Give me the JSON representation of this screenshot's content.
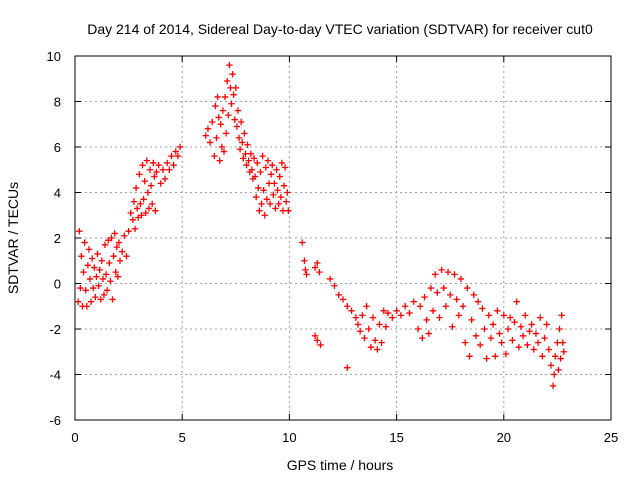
{
  "chart_data": {
    "type": "scatter",
    "title": "Day 214 of 2014, Sidereal Day-to-day VTEC variation (SDTVAR) for receiver cut0",
    "xlabel": "GPS time / hours",
    "ylabel": "SDTVAR / TECUs",
    "xlim": [
      0,
      25
    ],
    "ylim": [
      -6,
      10
    ],
    "xticks": [
      "0",
      "5",
      "10",
      "15",
      "20",
      "25"
    ],
    "yticks": [
      "-6",
      "-4",
      "-2",
      "0",
      "2",
      "4",
      "6",
      "8",
      "10"
    ],
    "grid": true,
    "marker": "+",
    "marker_color": "#ff0000",
    "series": [
      {
        "name": "cut0",
        "points": [
          [
            0.15,
            -0.8
          ],
          [
            0.2,
            2.3
          ],
          [
            0.25,
            -0.2
          ],
          [
            0.3,
            1.2
          ],
          [
            0.35,
            -1.0
          ],
          [
            0.4,
            0.5
          ],
          [
            0.45,
            1.8
          ],
          [
            0.5,
            -0.3
          ],
          [
            0.55,
            -1.0
          ],
          [
            0.6,
            0.8
          ],
          [
            0.65,
            1.5
          ],
          [
            0.7,
            0.2
          ],
          [
            0.75,
            -0.8
          ],
          [
            0.8,
            1.1
          ],
          [
            0.85,
            -0.2
          ],
          [
            0.9,
            0.7
          ],
          [
            0.95,
            -0.6
          ],
          [
            1.0,
            0.3
          ],
          [
            1.05,
            1.3
          ],
          [
            1.1,
            -0.1
          ],
          [
            1.15,
            0.6
          ],
          [
            1.2,
            -0.7
          ],
          [
            1.25,
            1.0
          ],
          [
            1.3,
            0.2
          ],
          [
            1.35,
            -0.5
          ],
          [
            1.4,
            1.7
          ],
          [
            1.45,
            0.4
          ],
          [
            1.5,
            -0.3
          ],
          [
            1.55,
            1.9
          ],
          [
            1.6,
            0.9
          ],
          [
            1.65,
            0.1
          ],
          [
            1.7,
            2.0
          ],
          [
            1.75,
            -0.7
          ],
          [
            1.8,
            1.2
          ],
          [
            1.85,
            2.2
          ],
          [
            1.9,
            0.5
          ],
          [
            1.95,
            1.6
          ],
          [
            2.0,
            0.3
          ],
          [
            2.05,
            1.8
          ],
          [
            2.1,
            1.0
          ],
          [
            2.2,
            1.4
          ],
          [
            2.3,
            2.1
          ],
          [
            2.4,
            1.2
          ],
          [
            2.5,
            2.3
          ],
          [
            2.6,
            3.1
          ],
          [
            2.7,
            2.8
          ],
          [
            2.75,
            3.6
          ],
          [
            2.8,
            2.4
          ],
          [
            2.85,
            4.2
          ],
          [
            2.9,
            3.3
          ],
          [
            2.95,
            2.9
          ],
          [
            3.0,
            4.8
          ],
          [
            3.05,
            3.5
          ],
          [
            3.1,
            3.0
          ],
          [
            3.15,
            5.2
          ],
          [
            3.2,
            3.7
          ],
          [
            3.25,
            4.5
          ],
          [
            3.3,
            3.1
          ],
          [
            3.35,
            5.4
          ],
          [
            3.4,
            4.0
          ],
          [
            3.45,
            3.3
          ],
          [
            3.5,
            5.0
          ],
          [
            3.55,
            4.3
          ],
          [
            3.6,
            3.5
          ],
          [
            3.65,
            5.3
          ],
          [
            3.7,
            4.7
          ],
          [
            3.75,
            3.2
          ],
          [
            3.8,
            4.9
          ],
          [
            3.9,
            5.2
          ],
          [
            4.0,
            4.4
          ],
          [
            4.1,
            5.0
          ],
          [
            4.2,
            4.6
          ],
          [
            4.3,
            5.3
          ],
          [
            4.4,
            5.0
          ],
          [
            4.5,
            5.6
          ],
          [
            4.6,
            5.2
          ],
          [
            4.7,
            5.8
          ],
          [
            4.8,
            5.6
          ],
          [
            4.9,
            6.0
          ],
          [
            6.1,
            6.5
          ],
          [
            6.2,
            6.8
          ],
          [
            6.3,
            6.2
          ],
          [
            6.4,
            7.1
          ],
          [
            6.5,
            5.6
          ],
          [
            6.55,
            7.8
          ],
          [
            6.6,
            6.4
          ],
          [
            6.65,
            8.2
          ],
          [
            6.7,
            7.3
          ],
          [
            6.75,
            5.4
          ],
          [
            6.8,
            7.0
          ],
          [
            6.85,
            6.0
          ],
          [
            6.9,
            7.6
          ],
          [
            6.95,
            5.8
          ],
          [
            7.0,
            8.2
          ],
          [
            7.05,
            6.6
          ],
          [
            7.1,
            8.9
          ],
          [
            7.15,
            7.4
          ],
          [
            7.2,
            9.6
          ],
          [
            7.25,
            8.6
          ],
          [
            7.3,
            7.9
          ],
          [
            7.35,
            9.2
          ],
          [
            7.4,
            8.3
          ],
          [
            7.45,
            7.2
          ],
          [
            7.5,
            8.6
          ],
          [
            7.55,
            6.9
          ],
          [
            7.6,
            7.6
          ],
          [
            7.65,
            6.4
          ],
          [
            7.7,
            5.9
          ],
          [
            7.75,
            7.1
          ],
          [
            7.8,
            6.2
          ],
          [
            7.85,
            5.5
          ],
          [
            7.9,
            6.6
          ],
          [
            7.95,
            5.7
          ],
          [
            8.0,
            5.2
          ],
          [
            8.05,
            6.1
          ],
          [
            8.1,
            5.4
          ],
          [
            8.15,
            4.9
          ],
          [
            8.2,
            5.7
          ],
          [
            8.25,
            5.0
          ],
          [
            8.3,
            4.6
          ],
          [
            8.35,
            5.5
          ],
          [
            8.4,
            4.7
          ],
          [
            8.45,
            3.8
          ],
          [
            8.5,
            5.3
          ],
          [
            8.55,
            4.2
          ],
          [
            8.6,
            3.2
          ],
          [
            8.65,
            4.9
          ],
          [
            8.7,
            3.5
          ],
          [
            8.75,
            5.6
          ],
          [
            8.8,
            4.1
          ],
          [
            8.85,
            3.0
          ],
          [
            8.9,
            5.1
          ],
          [
            8.95,
            3.7
          ],
          [
            9.0,
            5.4
          ],
          [
            9.05,
            4.4
          ],
          [
            9.1,
            3.5
          ],
          [
            9.15,
            4.8
          ],
          [
            9.2,
            5.2
          ],
          [
            9.25,
            3.9
          ],
          [
            9.3,
            4.4
          ],
          [
            9.35,
            3.3
          ],
          [
            9.4,
            5.0
          ],
          [
            9.45,
            4.1
          ],
          [
            9.5,
            3.5
          ],
          [
            9.55,
            4.7
          ],
          [
            9.6,
            3.8
          ],
          [
            9.65,
            5.3
          ],
          [
            9.7,
            3.2
          ],
          [
            9.75,
            4.3
          ],
          [
            9.8,
            5.1
          ],
          [
            9.85,
            3.6
          ],
          [
            9.9,
            4.0
          ],
          [
            9.95,
            3.2
          ],
          [
            10.6,
            1.8
          ],
          [
            10.7,
            1.0
          ],
          [
            10.75,
            0.6
          ],
          [
            10.8,
            0.4
          ],
          [
            11.2,
            0.7
          ],
          [
            11.3,
            0.9
          ],
          [
            11.4,
            0.5
          ],
          [
            11.2,
            -2.3
          ],
          [
            11.3,
            -2.5
          ],
          [
            11.45,
            -2.7
          ],
          [
            11.9,
            0.2
          ],
          [
            12.1,
            -0.1
          ],
          [
            12.3,
            -0.5
          ],
          [
            12.5,
            -0.7
          ],
          [
            12.7,
            -1.0
          ],
          [
            12.9,
            -1.2
          ],
          [
            13.1,
            -1.5
          ],
          [
            13.2,
            -1.8
          ],
          [
            13.3,
            -2.1
          ],
          [
            13.4,
            -1.4
          ],
          [
            13.5,
            -2.4
          ],
          [
            13.6,
            -1.0
          ],
          [
            13.7,
            -2.0
          ],
          [
            13.8,
            -2.8
          ],
          [
            13.9,
            -1.5
          ],
          [
            14.0,
            -2.5
          ],
          [
            14.1,
            -2.9
          ],
          [
            14.2,
            -1.8
          ],
          [
            14.3,
            -2.6
          ],
          [
            14.4,
            -1.2
          ],
          [
            14.5,
            -1.9
          ],
          [
            14.6,
            -1.3
          ],
          [
            14.8,
            -1.5
          ],
          [
            15.0,
            -1.2
          ],
          [
            15.2,
            -1.4
          ],
          [
            15.4,
            -1.0
          ],
          [
            15.6,
            -1.3
          ],
          [
            15.8,
            -0.8
          ],
          [
            16.0,
            -2.0
          ],
          [
            16.1,
            -1.0
          ],
          [
            16.2,
            -2.4
          ],
          [
            16.3,
            -0.6
          ],
          [
            16.4,
            -1.6
          ],
          [
            16.5,
            -2.2
          ],
          [
            16.6,
            -0.2
          ],
          [
            16.7,
            -1.2
          ],
          [
            16.8,
            0.4
          ],
          [
            16.9,
            -0.4
          ],
          [
            17.0,
            -1.5
          ],
          [
            17.1,
            0.6
          ],
          [
            17.2,
            -0.2
          ],
          [
            17.3,
            -1.0
          ],
          [
            17.4,
            0.5
          ],
          [
            17.5,
            -0.5
          ],
          [
            17.6,
            -1.9
          ],
          [
            17.7,
            0.4
          ],
          [
            17.8,
            -0.7
          ],
          [
            17.9,
            -1.4
          ],
          [
            18.0,
            0.2
          ],
          [
            18.1,
            -1.0
          ],
          [
            18.2,
            -2.6
          ],
          [
            18.3,
            -0.2
          ],
          [
            18.4,
            -3.2
          ],
          [
            18.5,
            -1.6
          ],
          [
            18.6,
            -0.5
          ],
          [
            18.7,
            -2.3
          ],
          [
            18.8,
            -0.8
          ],
          [
            18.9,
            -2.7
          ],
          [
            19.0,
            -1.1
          ],
          [
            19.1,
            -2.0
          ],
          [
            19.2,
            -3.3
          ],
          [
            19.3,
            -1.4
          ],
          [
            19.4,
            -2.4
          ],
          [
            19.5,
            -1.8
          ],
          [
            19.6,
            -3.2
          ],
          [
            19.7,
            -1.2
          ],
          [
            19.8,
            -2.2
          ],
          [
            19.9,
            -2.6
          ],
          [
            20.0,
            -1.4
          ],
          [
            20.1,
            -3.1
          ],
          [
            20.2,
            -2.0
          ],
          [
            20.3,
            -1.5
          ],
          [
            20.4,
            -2.5
          ],
          [
            20.5,
            -1.7
          ],
          [
            20.6,
            -0.8
          ],
          [
            20.7,
            -2.8
          ],
          [
            20.8,
            -1.9
          ],
          [
            20.9,
            -2.3
          ],
          [
            21.0,
            -1.4
          ],
          [
            21.1,
            -2.7
          ],
          [
            21.2,
            -2.1
          ],
          [
            21.3,
            -1.8
          ],
          [
            21.4,
            -2.9
          ],
          [
            21.5,
            -2.2
          ],
          [
            21.6,
            -2.6
          ],
          [
            21.7,
            -1.5
          ],
          [
            21.8,
            -3.2
          ],
          [
            21.9,
            -2.4
          ],
          [
            22.0,
            -1.8
          ],
          [
            22.1,
            -2.9
          ],
          [
            22.2,
            -3.6
          ],
          [
            22.3,
            -4.5
          ],
          [
            22.35,
            -4.0
          ],
          [
            22.4,
            -3.2
          ],
          [
            22.5,
            -2.6
          ],
          [
            22.55,
            -3.8
          ],
          [
            22.6,
            -2.0
          ],
          [
            22.65,
            -3.3
          ],
          [
            22.7,
            -1.4
          ],
          [
            22.75,
            -2.6
          ],
          [
            22.8,
            -3.0
          ],
          [
            12.7,
            -3.7
          ]
        ]
      }
    ]
  }
}
